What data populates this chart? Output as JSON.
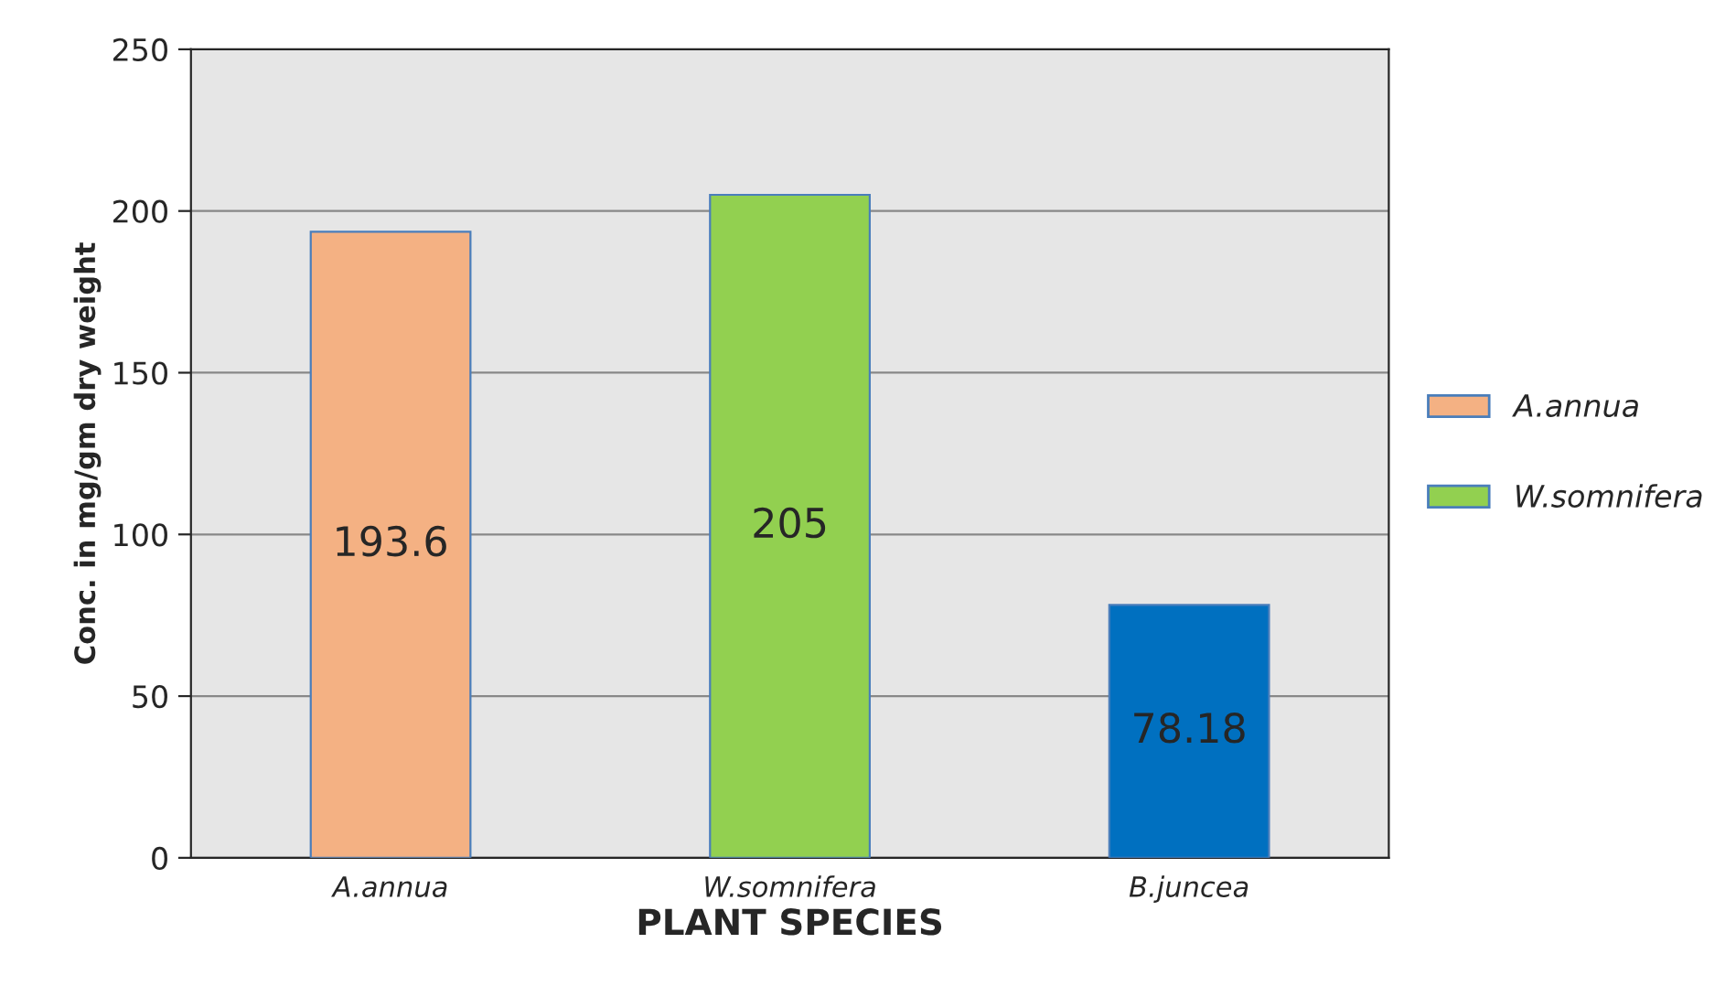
{
  "chart_data": {
    "type": "bar",
    "xlabel": "PLANT SPECIES",
    "ylabel": "Conc. in mg/gm dry weight",
    "categories": [
      "A.annua",
      "W.somnifera",
      "B.juncea"
    ],
    "series": [
      {
        "name": "A.annua",
        "color": "#f4b183",
        "values": [
          193.6,
          null,
          null
        ]
      },
      {
        "name": "W.somnifera",
        "color": "#92d050",
        "values": [
          null,
          205,
          null
        ]
      },
      {
        "color": "#0070c0",
        "values": [
          null,
          null,
          78.18
        ]
      }
    ],
    "ylim": [
      0,
      250
    ],
    "yticks": [
      0,
      50,
      100,
      150,
      200,
      250
    ],
    "grid": "y",
    "legend": "right",
    "data_labels": true
  }
}
